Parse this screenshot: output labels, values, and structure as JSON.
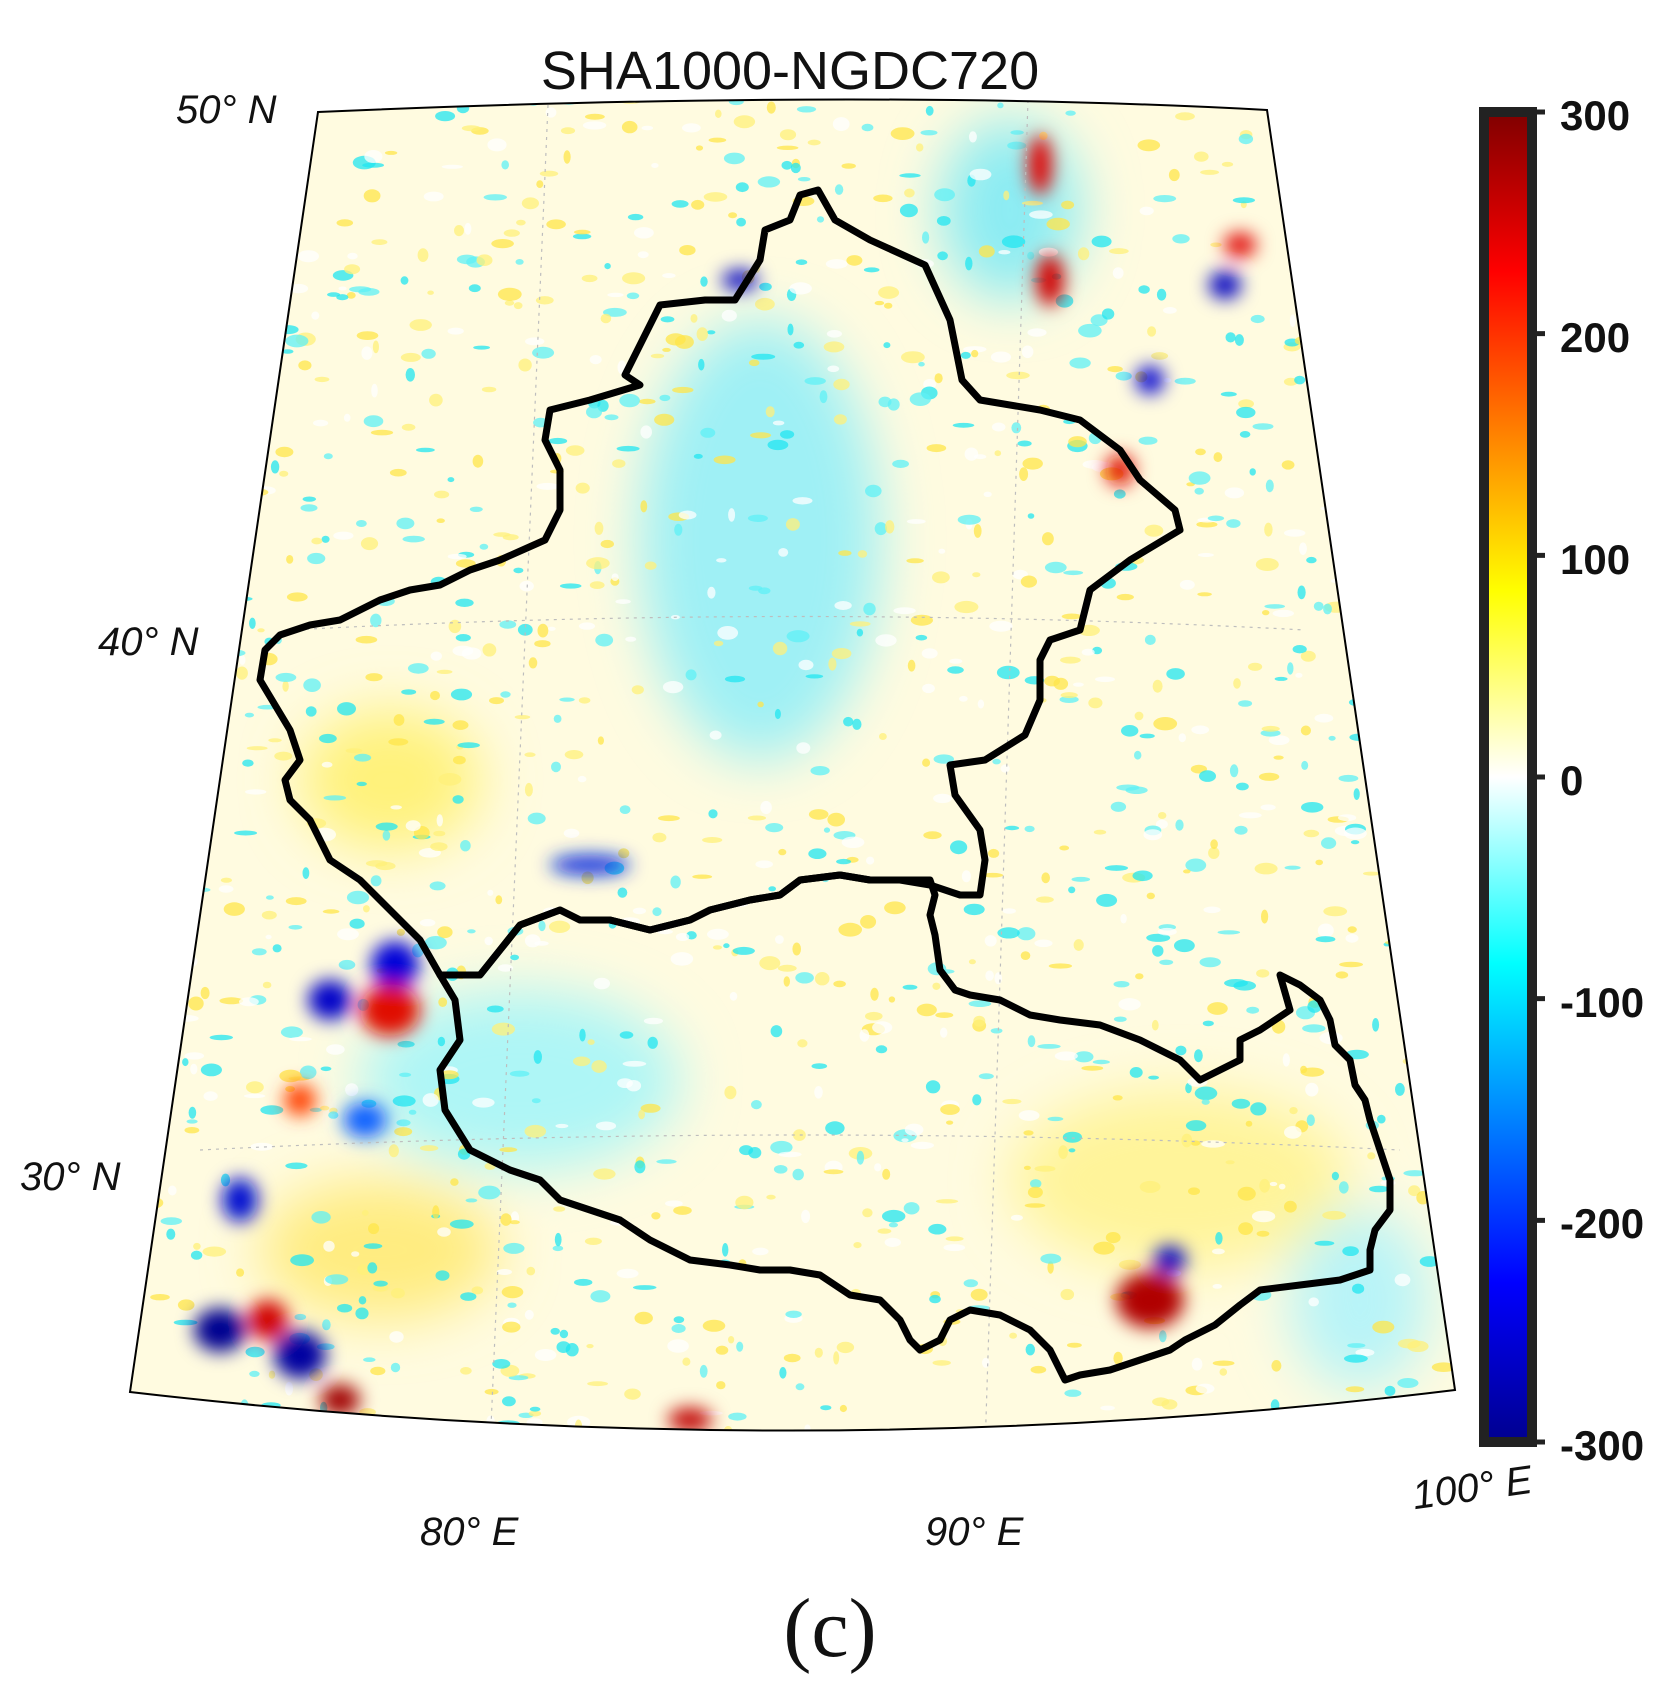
{
  "title": "SHA1000-NGDC720",
  "panel_label": "(c)",
  "map": {
    "lat_labels": [
      "50° N",
      "40° N",
      "30° N"
    ],
    "lon_labels": [
      "80° E",
      "90° E",
      "100° E"
    ],
    "extent": {
      "lon_min": 70,
      "lon_max": 100,
      "lat_min": 25,
      "lat_max": 50
    }
  },
  "colorbar": {
    "min": -300,
    "max": 300,
    "ticks": [
      "300",
      "200",
      "100",
      "0",
      "-100",
      "-200",
      "-300"
    ],
    "colormap": [
      "#00008f",
      "#0000ff",
      "#00ffff",
      "#ffffff",
      "#ffff00",
      "#ff0000",
      "#7f0000"
    ]
  }
}
